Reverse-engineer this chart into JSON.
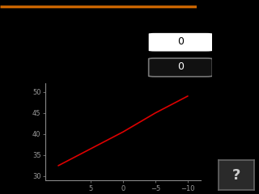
{
  "bg_color": "#000000",
  "orange_line_color": "#c86400",
  "slider_bg": "#181818",
  "slider1_box_bg": "#ffffff",
  "slider1_box_text": "#000000",
  "slider2_box_bg": "#111111",
  "slider2_box_text": "#ffffff",
  "slider2_box_border": "#777777",
  "chart_bg": "#000000",
  "chart_line_color": "#dd0000",
  "chart_x": [
    10,
    5,
    0,
    -5,
    -10
  ],
  "chart_y": [
    32.5,
    36.5,
    40.5,
    45.0,
    49.0
  ],
  "x_ticks": [
    5,
    0,
    -5,
    -10
  ],
  "y_ticks": [
    30,
    35,
    40,
    45,
    50
  ],
  "tick_color": "#999999",
  "tick_fontsize": 6,
  "axis_color": "#888888",
  "question_mark_color": "#cccccc",
  "question_mark_bg": "#2a2a2a",
  "question_mark_border": "#666666",
  "slider1_value": "0",
  "slider2_value": "0"
}
